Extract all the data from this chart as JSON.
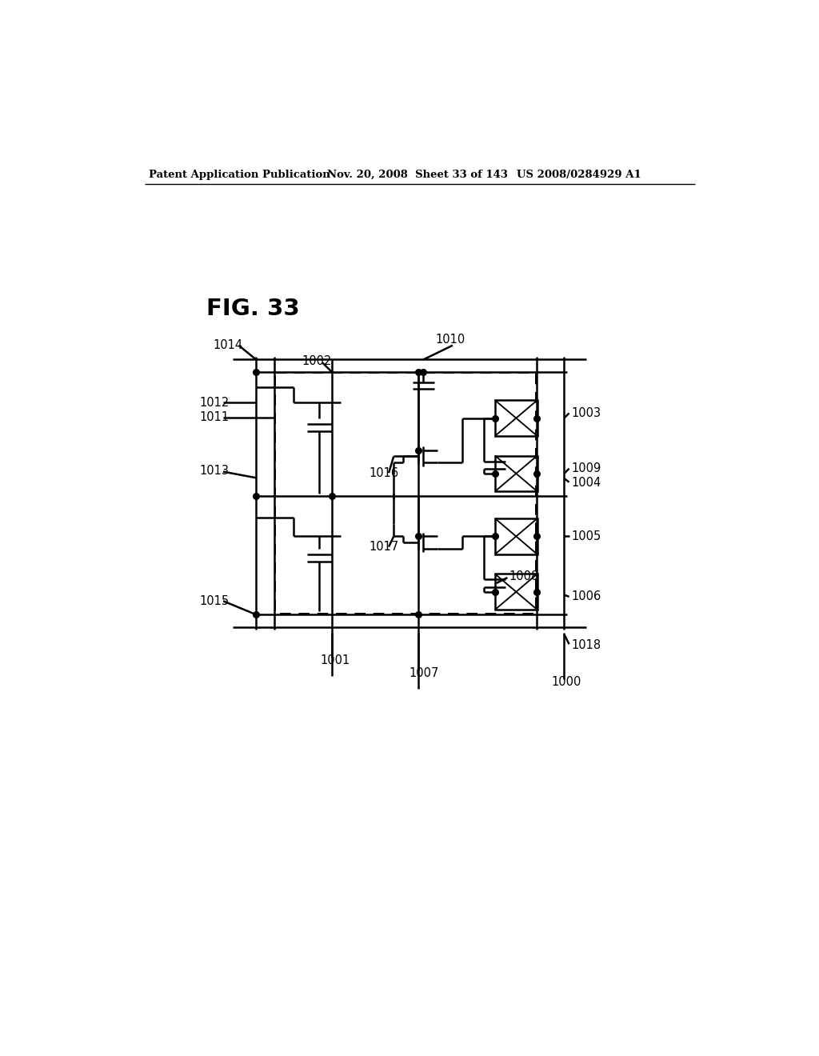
{
  "bg_color": "#ffffff",
  "fig_label": "FIG. 33",
  "header_left": "Patent Application Publication",
  "header_mid": "Nov. 20, 2008  Sheet 33 of 143",
  "header_right": "US 2008/0284929 A1"
}
